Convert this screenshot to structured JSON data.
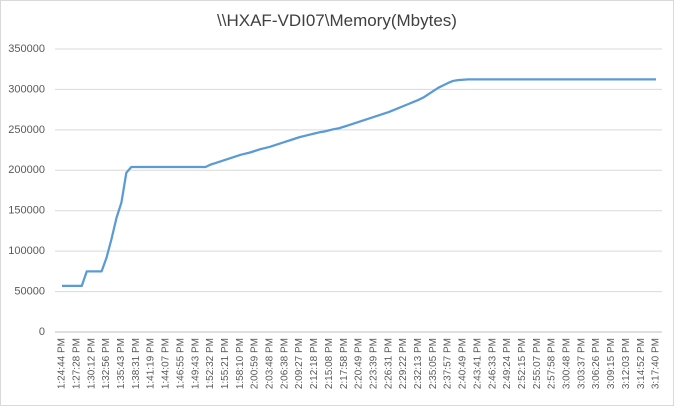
{
  "chart_data": {
    "type": "line",
    "title": "\\\\HXAF-VDI07\\Memory(Mbytes)",
    "categories": [
      "1:24:44 PM",
      null,
      null,
      "1:27:28 PM",
      null,
      null,
      "1:30:12 PM",
      null,
      null,
      "1:32:56 PM",
      null,
      null,
      "1:35:43 PM",
      null,
      null,
      "1:38:31 PM",
      null,
      null,
      "1:41:19 PM",
      null,
      null,
      "1:44:07 PM",
      null,
      null,
      "1:46:55 PM",
      null,
      null,
      "1:49:43 PM",
      null,
      null,
      "1:52:32 PM",
      null,
      null,
      "1:55:21 PM",
      null,
      null,
      "1:58:10 PM",
      null,
      null,
      "2:00:59 PM",
      null,
      null,
      "2:03:48 PM",
      null,
      null,
      "2:06:38 PM",
      null,
      null,
      "2:09:27 PM",
      null,
      null,
      "2:12:18 PM",
      null,
      null,
      "2:15:08 PM",
      null,
      null,
      "2:17:58 PM",
      null,
      null,
      "2:20:49 PM",
      null,
      null,
      "2:23:39 PM",
      null,
      null,
      "2:26:31 PM",
      null,
      null,
      "2:29:22 PM",
      null,
      null,
      "2:32:13 PM",
      null,
      null,
      "2:35:05 PM",
      null,
      null,
      "2:37:57 PM",
      null,
      null,
      "2:40:49 PM",
      null,
      null,
      "2:43:41 PM",
      null,
      null,
      "2:46:33 PM",
      null,
      null,
      "2:49:24 PM",
      null,
      null,
      "2:52:15 PM",
      null,
      null,
      "2:55:07 PM",
      null,
      null,
      "2:57:58 PM",
      null,
      null,
      "3:00:48 PM",
      null,
      null,
      "3:03:37 PM",
      null,
      null,
      "3:06:26 PM",
      null,
      null,
      "3:09:15 PM",
      null,
      null,
      "3:12:03 PM",
      null,
      null,
      "3:14:52 PM",
      null,
      null,
      "3:17:40 PM"
    ],
    "values": [
      57000,
      57000,
      57000,
      57000,
      57000,
      75000,
      75000,
      75000,
      75000,
      92000,
      115000,
      141000,
      160000,
      197000,
      204000,
      204000,
      204000,
      204000,
      204000,
      204000,
      204000,
      204000,
      204000,
      204000,
      204000,
      204000,
      204000,
      204000,
      204000,
      204000,
      207000,
      209000,
      211000,
      213000,
      215000,
      217000,
      219000,
      220500,
      222000,
      224000,
      226000,
      227500,
      229000,
      231000,
      233000,
      235000,
      237000,
      239000,
      241000,
      242500,
      244000,
      245500,
      247000,
      248000,
      249500,
      251000,
      252000,
      254000,
      256000,
      258000,
      260000,
      262000,
      264000,
      266000,
      268000,
      270000,
      272000,
      274500,
      277000,
      279500,
      282000,
      284500,
      287000,
      290000,
      294000,
      298000,
      302000,
      305000,
      308000,
      310500,
      311500,
      312000,
      312500,
      312500,
      312500,
      312500,
      312500,
      312500,
      312500,
      312500,
      312500,
      312500,
      312500,
      312500,
      312500,
      312500,
      312500,
      312500,
      312500,
      312500,
      312500,
      312500,
      312500,
      312500,
      312500,
      312500,
      312500,
      312500,
      312500,
      312500,
      312500,
      312500,
      312500,
      312500,
      312500,
      312500,
      312500,
      312500,
      312500,
      312500,
      312500
    ],
    "color": "#5b9bd5",
    "ylim": [
      0,
      350000
    ],
    "yticks": [
      0,
      50000,
      100000,
      150000,
      200000,
      250000,
      300000,
      350000
    ],
    "grid": true
  }
}
